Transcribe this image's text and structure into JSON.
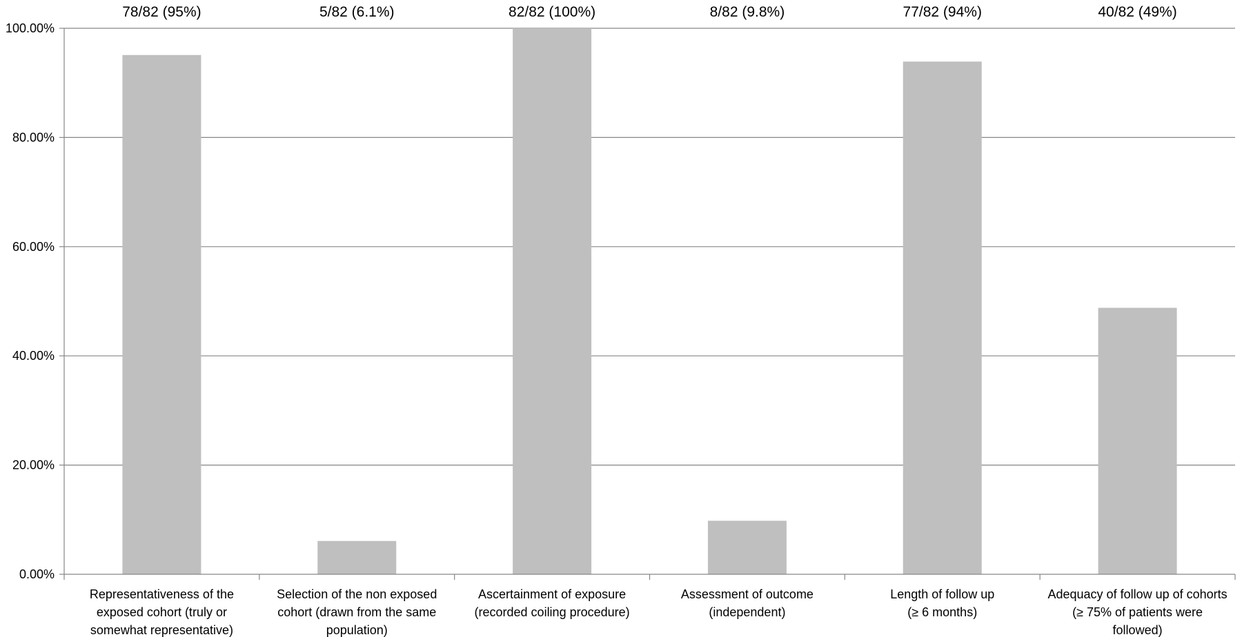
{
  "chart_data": {
    "type": "bar",
    "categories": [
      [
        "Representativeness of the",
        "exposed cohort (truly or",
        "somewhat representative)"
      ],
      [
        "Selection of the non exposed",
        "cohort (drawn from the same",
        "population)"
      ],
      [
        "Ascertainment of exposure",
        "(recorded coiling procedure)"
      ],
      [
        "Assessment of outcome",
        "(independent)"
      ],
      [
        "Length of follow up",
        "(≥ 6 months)"
      ],
      [
        "Adequacy of follow up of cohorts",
        "(≥ 75% of patients were",
        "followed)"
      ]
    ],
    "values": [
      95.1,
      6.1,
      100,
      9.8,
      93.9,
      48.8
    ],
    "data_labels": [
      "78/82 (95%)",
      "5/82 (6.1%)",
      "82/82 (100%)",
      "8/82 (9.8%)",
      "77/82 (94%)",
      "40/82 (49%)"
    ],
    "y_ticks": [
      "0.00%",
      "20.00%",
      "40.00%",
      "60.00%",
      "80.00%",
      "100.00%"
    ],
    "ylim": [
      0,
      100
    ],
    "grid": true,
    "legend": "none",
    "title": "",
    "xlabel": "",
    "ylabel": "",
    "colors": {
      "bar": "#bfbfbf",
      "grid": "#868686",
      "axis": "#868686",
      "text": "#000000"
    }
  }
}
